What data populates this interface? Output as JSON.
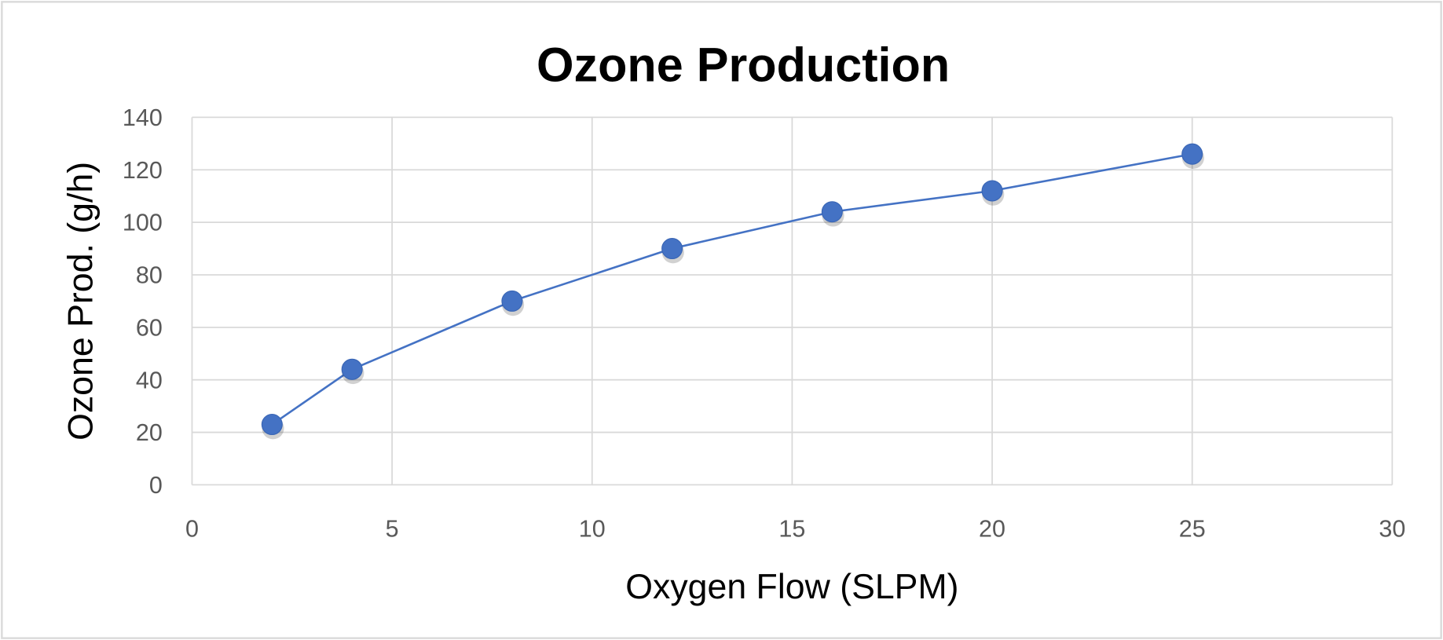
{
  "chart_data": {
    "type": "line",
    "title": "Ozone Production",
    "xlabel": "Oxygen Flow (SLPM)",
    "ylabel": "Ozone Prod. (g/h)",
    "xlim": [
      0,
      30
    ],
    "ylim": [
      0,
      140
    ],
    "x_ticks": [
      "0",
      "5",
      "10",
      "15",
      "20",
      "25",
      "30"
    ],
    "y_ticks": [
      "0",
      "20",
      "40",
      "60",
      "80",
      "100",
      "120",
      "140"
    ],
    "grid": true,
    "legend": "none",
    "series": [
      {
        "name": "Ozone Production",
        "color": "#4472C4",
        "x": [
          2,
          4,
          8,
          12,
          16,
          20,
          25
        ],
        "y": [
          23,
          44,
          70,
          90,
          104,
          112,
          126
        ]
      }
    ]
  }
}
